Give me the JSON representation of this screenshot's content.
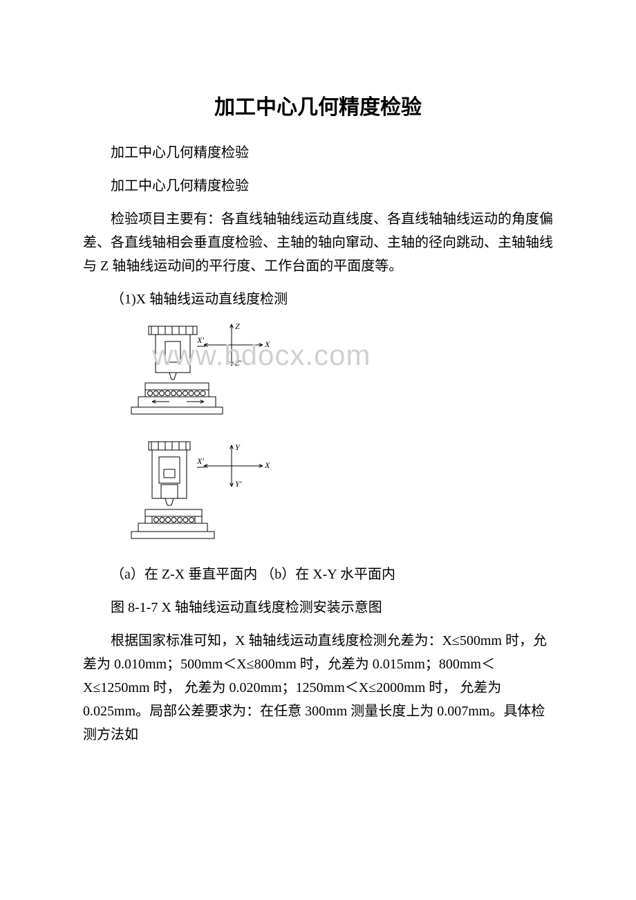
{
  "title": "加工中心几何精度检验",
  "para1": "加工中心几何精度检验",
  "para2": "加工中心几何精度检验",
  "para3": "检验项目主要有：各直线轴轴线运动直线度、各直线轴轴线运动的角度偏差、各直线轴相会垂直度检验、主轴的轴向窜动、主轴的径向跳动、主轴轴线与 Z 轴轴线运动间的平行度、工作台面的平面度等。",
  "para4": "（1)X 轴轴线运动直线度检测",
  "caption_ab": "（a）在 Z-X 垂直平面内 （b）在 X-Y 水平面内",
  "caption_fig": "图 8-1-7 X 轴轴线运动直线度检测安装示意图",
  "para5": "根据国家标准可知，X 轴轴线运动直线度检测允差为：X≤500mm 时，允差为 0.010mm；500mm＜X≤800mm 时，允差为 0.015mm；800mm＜X≤1250mm 时， 允差为 0.020mm；1250mm＜X≤2000mm 时， 允差为 0.025mm。局部公差要求为：在任意 300mm 测量长度上为 0.007mm。具体检测方法如",
  "watermark": "www.bdocx.com",
  "diagram": {
    "stroke": "#000000",
    "stroke_width": 1,
    "axis_labels_top": {
      "Z": "Z",
      "X": "X",
      "Xp": "X'",
      "Zp": "Z'"
    },
    "axis_labels_bottom": {
      "Y": "Y",
      "X": "X",
      "Xp": "X'",
      "Yp": "Y'"
    },
    "fontsize": 12
  }
}
